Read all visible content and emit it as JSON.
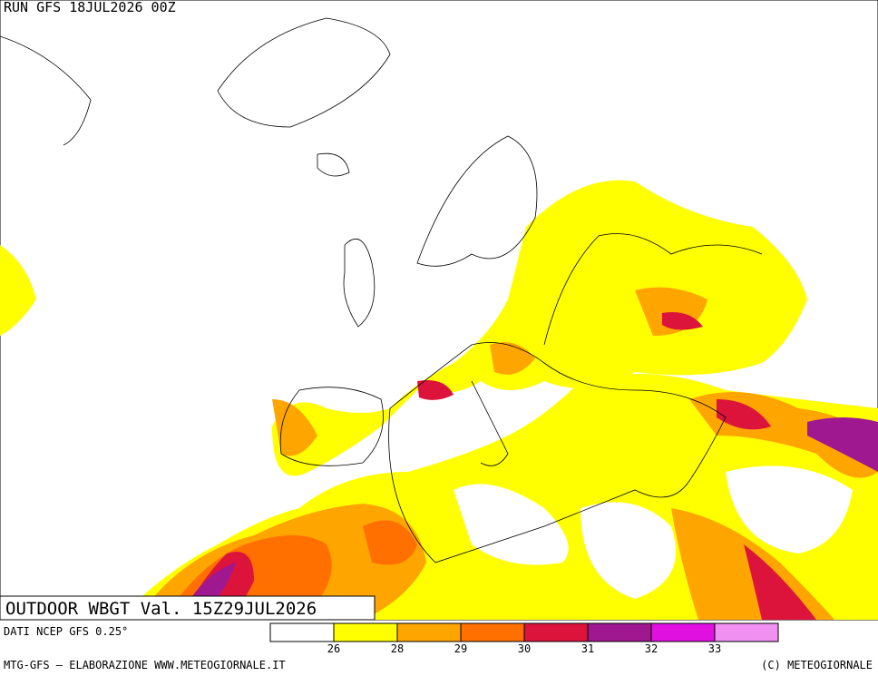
{
  "header": {
    "title": "RUN GFS 18JUL2026 00Z"
  },
  "map": {
    "label": "OUTDOOR WBGT Val. 15Z29JUL2026"
  },
  "legend": {
    "source": "DATI NCEP GFS 0.25°",
    "colors": [
      "#ffffff",
      "#ffff00",
      "#ffa500",
      "#ff7000",
      "#dc143c",
      "#a01890",
      "#e010e0",
      "#f090f0"
    ],
    "ticks": [
      26,
      28,
      29,
      30,
      31,
      32,
      33
    ]
  },
  "footer": {
    "left": "MTG-GFS — ELABORAZIONE WWW.METEOGIORNALE.IT",
    "right": "(C) METEOGIORNALE"
  }
}
